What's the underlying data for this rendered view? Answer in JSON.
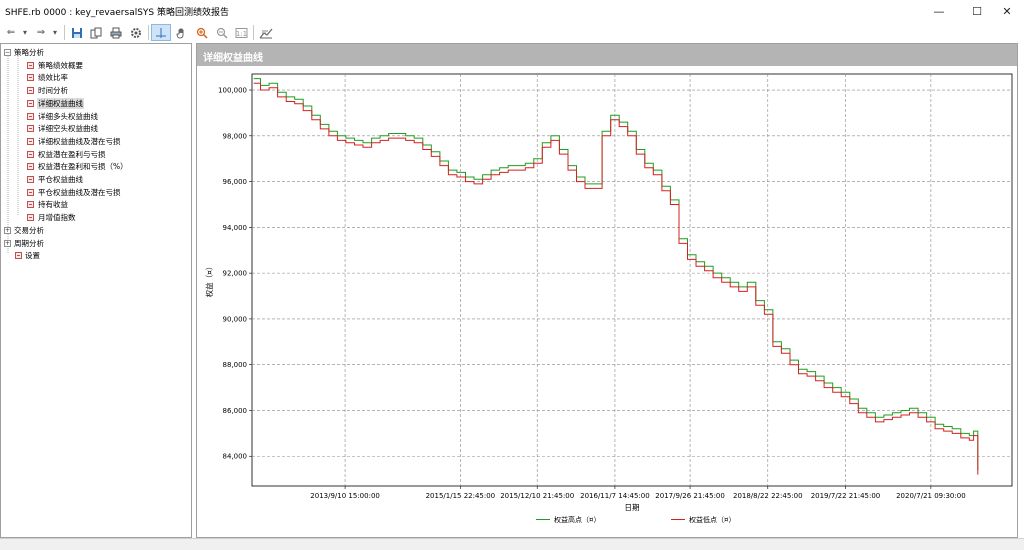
{
  "window": {
    "title": "SHFE.rb 0000 : key_revaersalSYS 策略回测绩效报告",
    "minimize_glyph": "—",
    "maximize_glyph": "☐",
    "close_glyph": "✕"
  },
  "toolbar": {
    "buttons": [
      {
        "name": "back-icon",
        "glyph": "⇐"
      },
      {
        "name": "dropdown-icon",
        "glyph": "▾"
      },
      {
        "name": "forward-icon",
        "glyph": "⇒"
      },
      {
        "name": "dropdown-icon",
        "glyph": "▾"
      },
      {
        "name": "save-icon",
        "glyph": ""
      },
      {
        "name": "copy-icon",
        "glyph": ""
      },
      {
        "name": "print-icon",
        "glyph": ""
      },
      {
        "name": "settings-icon",
        "glyph": ""
      },
      {
        "name": "crosshair-icon",
        "glyph": ""
      },
      {
        "name": "hand-icon",
        "glyph": ""
      },
      {
        "name": "zoom-in-icon",
        "glyph": ""
      },
      {
        "name": "zoom-out-icon",
        "glyph": ""
      },
      {
        "name": "zoom-reset-icon",
        "glyph": ""
      },
      {
        "name": "chart-icon",
        "glyph": ""
      }
    ]
  },
  "tree": {
    "groups": [
      {
        "label": "策略分析",
        "expanded": true,
        "children": [
          "策略绩效概要",
          "绩效比率",
          "时间分析",
          "详细权益曲线",
          "详细多头权益曲线",
          "详细空头权益曲线",
          "详细权益曲线及潜在亏损",
          "权益潜在盈利与亏损",
          "权益潜在盈利和亏损（%）",
          "平仓权益曲线",
          "平仓权益曲线及潜在亏损",
          "持有收益",
          "月增值指数"
        ]
      },
      {
        "label": "交易分析",
        "expanded": false,
        "children": []
      },
      {
        "label": "周期分析",
        "expanded": false,
        "children": []
      }
    ],
    "extra_leaf": "设置",
    "selected": "详细权益曲线"
  },
  "panel": {
    "title": "详细权益曲线"
  },
  "chart_data": {
    "type": "line",
    "title": "",
    "ylabel": "权益（¤）",
    "xlabel": "日期",
    "ylim": [
      82700,
      100700
    ],
    "yticks": [
      84000,
      86000,
      88000,
      90000,
      92000,
      94000,
      96000,
      98000,
      100000
    ],
    "ytick_labels": [
      "84,000",
      "86,000",
      "88,000",
      "90,000",
      "92,000",
      "94,000",
      "96,000",
      "98,000",
      "100,000"
    ],
    "xlim": [
      2012.6,
      2021.5
    ],
    "xticks": [
      2013.69,
      2015.04,
      2015.94,
      2016.85,
      2017.73,
      2018.64,
      2019.55,
      2020.55
    ],
    "xtick_labels": [
      "2013/9/10 15:00:00",
      "2015/1/15 22:45:00",
      "2015/12/10 21:45:00",
      "2016/11/7 14:45:00",
      "2017/9/26 21:45:00",
      "2018/8/22 22:45:00",
      "2019/7/22 21:45:00",
      "2020/7/21 09:30:00"
    ],
    "grid": true,
    "legend": {
      "placement": "bottom-center",
      "entries": [
        "权益高点（¤）",
        "权益低点（¤）"
      ]
    },
    "colors": {
      "high": "#1e9e1e",
      "low": "#d42020",
      "grid": "#888888"
    },
    "series": [
      {
        "name": "权益高点（¤）",
        "x": [
          2012.62,
          2012.7,
          2012.8,
          2012.9,
          2013.0,
          2013.1,
          2013.2,
          2013.3,
          2013.4,
          2013.5,
          2013.6,
          2013.7,
          2013.8,
          2013.9,
          2014.0,
          2014.1,
          2014.2,
          2014.3,
          2014.4,
          2014.5,
          2014.6,
          2014.7,
          2014.8,
          2014.9,
          2015.0,
          2015.1,
          2015.2,
          2015.3,
          2015.4,
          2015.5,
          2015.6,
          2015.7,
          2015.8,
          2015.9,
          2016.0,
          2016.1,
          2016.2,
          2016.3,
          2016.4,
          2016.5,
          2016.6,
          2016.7,
          2016.8,
          2016.9,
          2017.0,
          2017.1,
          2017.2,
          2017.3,
          2017.4,
          2017.5,
          2017.6,
          2017.7,
          2017.8,
          2017.9,
          2018.0,
          2018.1,
          2018.2,
          2018.3,
          2018.4,
          2018.5,
          2018.6,
          2018.7,
          2018.8,
          2018.9,
          2019.0,
          2019.1,
          2019.2,
          2019.3,
          2019.4,
          2019.5,
          2019.6,
          2019.7,
          2019.8,
          2019.9,
          2020.0,
          2020.1,
          2020.2,
          2020.3,
          2020.4,
          2020.5,
          2020.6,
          2020.7,
          2020.8,
          2020.9,
          2021.0,
          2021.05,
          2021.1
        ],
        "values": [
          100500,
          100200,
          100300,
          99900,
          99700,
          99600,
          99300,
          98900,
          98500,
          98200,
          98000,
          97900,
          97800,
          97700,
          97900,
          98000,
          98100,
          98100,
          98000,
          97900,
          97600,
          97300,
          96900,
          96500,
          96400,
          96200,
          96100,
          96300,
          96500,
          96600,
          96700,
          96700,
          96800,
          97000,
          97700,
          98000,
          97400,
          96700,
          96200,
          95900,
          95900,
          98200,
          98900,
          98600,
          98200,
          97400,
          96800,
          96500,
          95800,
          95200,
          93500,
          92800,
          92500,
          92300,
          92000,
          91800,
          91600,
          91400,
          91600,
          90800,
          90400,
          89000,
          88700,
          88200,
          87800,
          87700,
          87500,
          87200,
          87000,
          86800,
          86500,
          86100,
          85900,
          85700,
          85800,
          85900,
          86000,
          86100,
          85900,
          85700,
          85400,
          85300,
          85200,
          85000,
          84900,
          85100,
          83400
        ]
      },
      {
        "name": "权益低点（¤）",
        "x": [
          2012.62,
          2012.7,
          2012.8,
          2012.9,
          2013.0,
          2013.1,
          2013.2,
          2013.3,
          2013.4,
          2013.5,
          2013.6,
          2013.7,
          2013.8,
          2013.9,
          2014.0,
          2014.1,
          2014.2,
          2014.3,
          2014.4,
          2014.5,
          2014.6,
          2014.7,
          2014.8,
          2014.9,
          2015.0,
          2015.1,
          2015.2,
          2015.3,
          2015.4,
          2015.5,
          2015.6,
          2015.7,
          2015.8,
          2015.9,
          2016.0,
          2016.1,
          2016.2,
          2016.3,
          2016.4,
          2016.5,
          2016.6,
          2016.7,
          2016.8,
          2016.9,
          2017.0,
          2017.1,
          2017.2,
          2017.3,
          2017.4,
          2017.5,
          2017.6,
          2017.7,
          2017.8,
          2017.9,
          2018.0,
          2018.1,
          2018.2,
          2018.3,
          2018.4,
          2018.5,
          2018.6,
          2018.7,
          2018.8,
          2018.9,
          2019.0,
          2019.1,
          2019.2,
          2019.3,
          2019.4,
          2019.5,
          2019.6,
          2019.7,
          2019.8,
          2019.9,
          2020.0,
          2020.1,
          2020.2,
          2020.3,
          2020.4,
          2020.5,
          2020.6,
          2020.7,
          2020.8,
          2020.9,
          2021.0,
          2021.05,
          2021.1
        ],
        "values": [
          100300,
          100000,
          100100,
          99700,
          99500,
          99400,
          99100,
          98700,
          98300,
          98000,
          97800,
          97700,
          97600,
          97500,
          97700,
          97800,
          97900,
          97900,
          97800,
          97700,
          97400,
          97100,
          96700,
          96300,
          96200,
          96000,
          95900,
          96100,
          96300,
          96400,
          96500,
          96500,
          96600,
          96800,
          97500,
          97800,
          97200,
          96500,
          96000,
          95700,
          95700,
          98000,
          98700,
          98400,
          98000,
          97200,
          96600,
          96300,
          95600,
          95000,
          93300,
          92600,
          92300,
          92100,
          91800,
          91600,
          91400,
          91200,
          91400,
          90600,
          90200,
          88800,
          88500,
          88000,
          87600,
          87500,
          87300,
          87000,
          86800,
          86600,
          86300,
          85900,
          85700,
          85500,
          85600,
          85700,
          85800,
          85900,
          85700,
          85500,
          85200,
          85100,
          85000,
          84800,
          84700,
          84900,
          83200
        ]
      }
    ]
  }
}
